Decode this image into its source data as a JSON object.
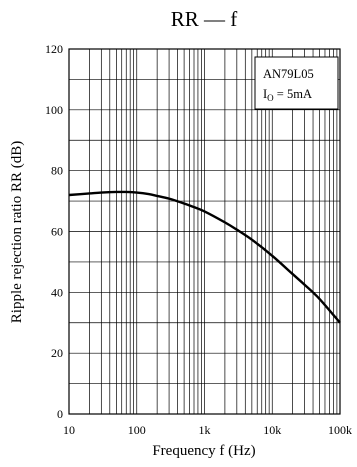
{
  "chart_data": {
    "type": "line",
    "title": "RR — f",
    "xlabel": "Frequency  f  (Hz)",
    "ylabel": "Ripple rejection ratio  RR  (dB)",
    "x_scale": "log",
    "xlim": [
      10,
      100000
    ],
    "ylim": [
      0,
      120
    ],
    "grid": true,
    "x_tick_labels": [
      "10",
      "100",
      "1k",
      "10k",
      "100k"
    ],
    "y_tick_labels": [
      "0",
      "20",
      "40",
      "60",
      "80",
      "100",
      "120"
    ],
    "legend": {
      "position": "top-right",
      "device": "AN79L05",
      "condition": "IO = 5mA"
    },
    "series": [
      {
        "x": [
          10,
          20,
          30,
          50,
          70,
          100,
          150,
          200,
          300,
          500,
          700,
          1000,
          2000,
          3000,
          5000,
          10000,
          20000,
          30000,
          50000,
          100000
        ],
        "y": [
          72,
          72.5,
          72.8,
          73,
          73,
          72.8,
          72.3,
          71.7,
          70.8,
          69.2,
          68,
          66.6,
          63,
          60.6,
          57.3,
          52,
          46,
          42.5,
          37.8,
          30
        ]
      }
    ]
  }
}
